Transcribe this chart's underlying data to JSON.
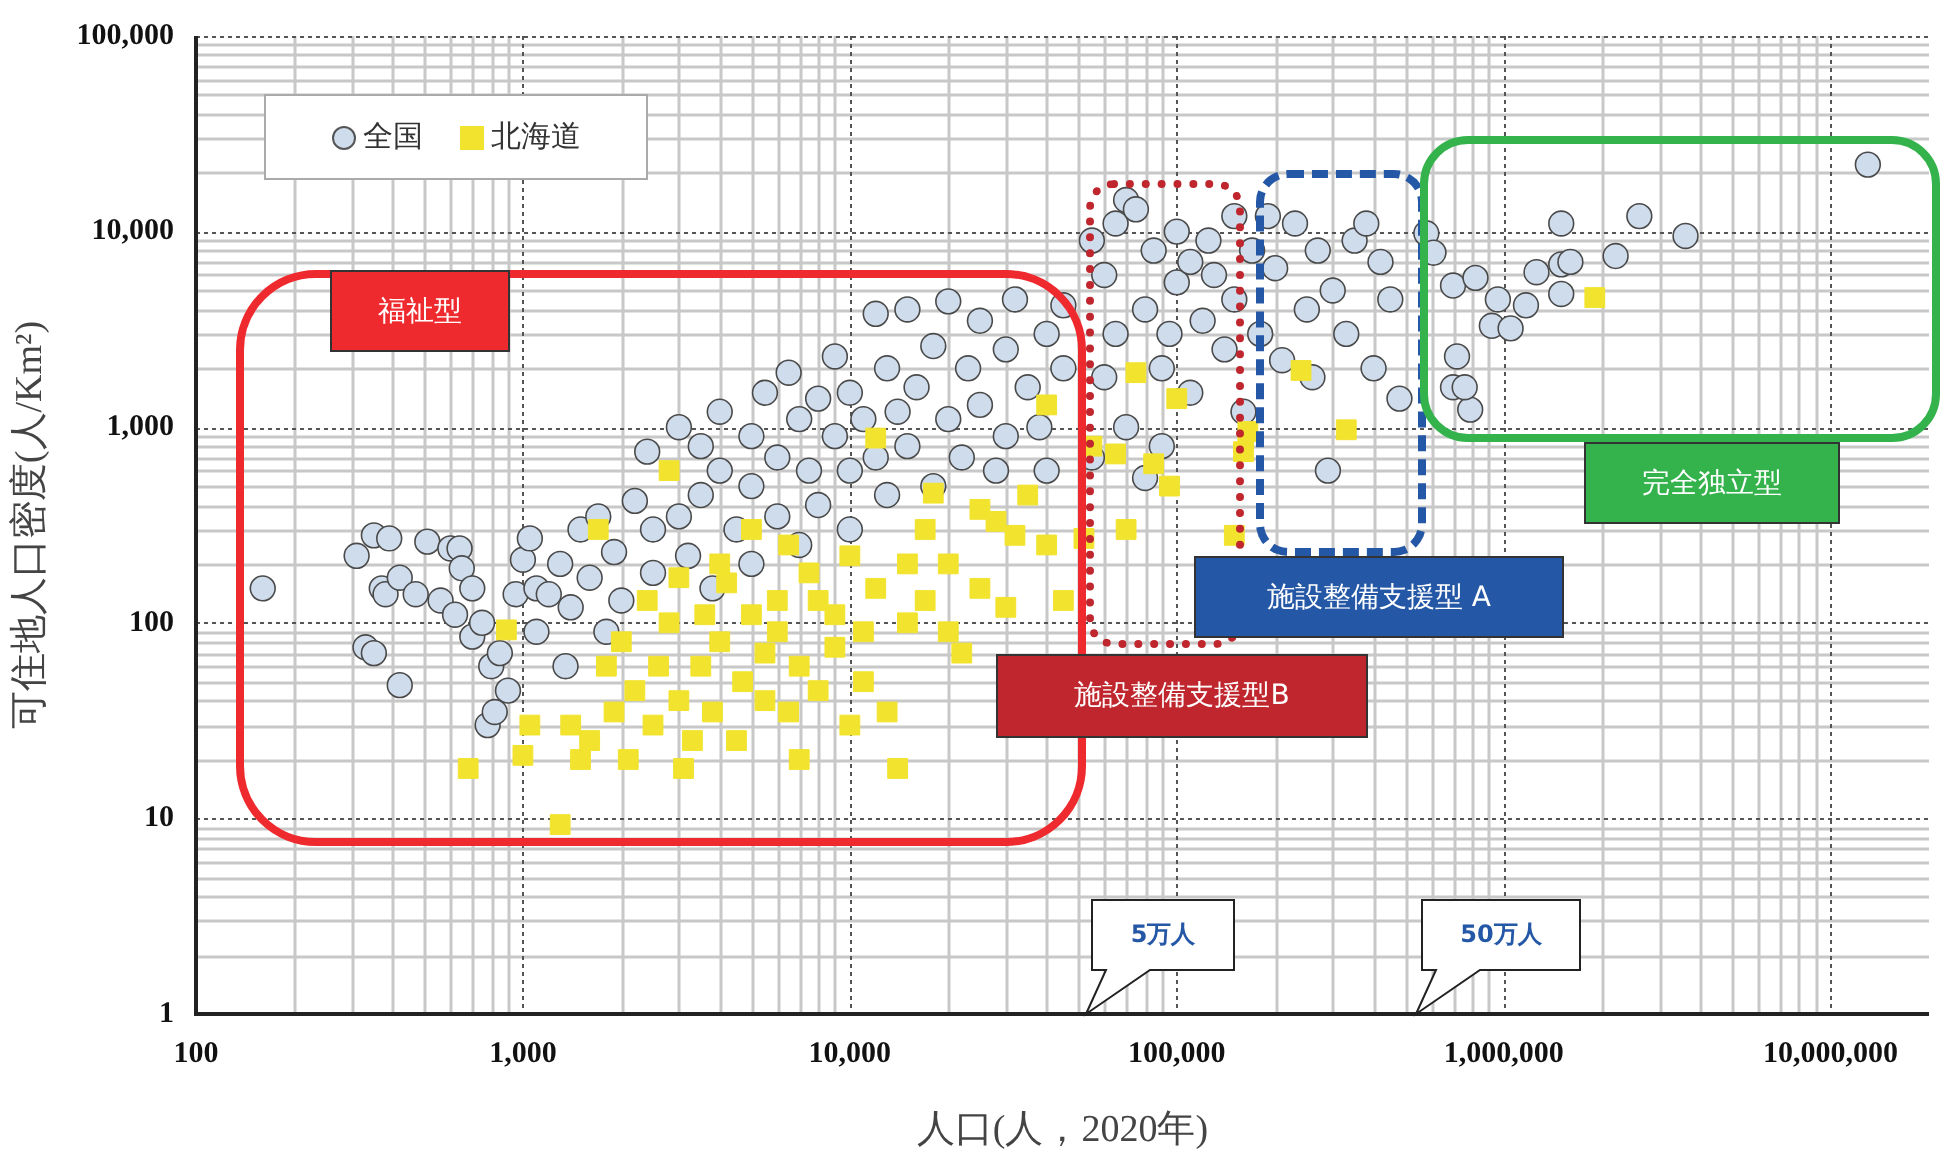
{
  "chart_data": {
    "type": "scatter",
    "xlabel": "人口(人，2020年)",
    "ylabel": "可住地人口密度(人/Km²)",
    "log": "xy",
    "grid": true,
    "legend": "top left",
    "xlim": [
      100,
      20000000
    ],
    "ylim": [
      1,
      100000
    ],
    "xticks": [
      {
        "value": 100,
        "label": "100"
      },
      {
        "value": 1000,
        "label": "1,000"
      },
      {
        "value": 10000,
        "label": "10,000"
      },
      {
        "value": 100000,
        "label": "100,000"
      },
      {
        "value": 1000000,
        "label": "1,000,000"
      },
      {
        "value": 10000000,
        "label": "10,000,000"
      }
    ],
    "yticks": [
      {
        "value": 1,
        "label": "1"
      },
      {
        "value": 10,
        "label": "10"
      },
      {
        "value": 100,
        "label": "100"
      },
      {
        "value": 1000,
        "label": "1,000"
      },
      {
        "value": 10000,
        "label": "10,000"
      },
      {
        "value": 100000,
        "label": "100,000"
      }
    ],
    "annotations": [
      "福祉型",
      "施設整備支援型B",
      "施設整備支援型 A",
      "完全独立型",
      "5万人",
      "50万人"
    ],
    "series": [
      {
        "name": "全国",
        "color": "#cfdcec",
        "marker": "circle",
        "x": [
          160,
          310,
          350,
          390,
          370,
          380,
          420,
          330,
          350,
          420,
          470,
          510,
          560,
          600,
          640,
          650,
          620,
          700,
          700,
          750,
          800,
          850,
          900,
          780,
          820,
          950,
          1000,
          1050,
          1100,
          1100,
          1200,
          1300,
          1350,
          1400,
          1500,
          1600,
          1700,
          1800,
          1900,
          2000,
          2200,
          2500,
          2500,
          2400,
          3000,
          3000,
          3200,
          3500,
          3500,
          3800,
          4000,
          4000,
          4500,
          5000,
          5000,
          5000,
          5500,
          6000,
          6000,
          6500,
          7000,
          7000,
          7500,
          8000,
          8000,
          9000,
          9000,
          10000,
          10000,
          10000,
          11000,
          12000,
          12000,
          13000,
          13000,
          14000,
          15000,
          15000,
          16000,
          18000,
          18000,
          20000,
          20000,
          22000,
          23000,
          25000,
          25000,
          28000,
          30000,
          30000,
          32000,
          35000,
          38000,
          40000,
          40000,
          45000,
          45000,
          55000,
          60000,
          65000,
          70000,
          75000,
          80000,
          85000,
          90000,
          95000,
          100000,
          100000,
          110000,
          110000,
          120000,
          125000,
          130000,
          140000,
          150000,
          150000,
          160000,
          170000,
          180000,
          190000,
          200000,
          210000,
          230000,
          250000,
          260000,
          270000,
          290000,
          300000,
          330000,
          350000,
          380000,
          400000,
          420000,
          450000,
          480000,
          55000,
          60000,
          70000,
          80000,
          65000,
          90000,
          580000,
          610000,
          700000,
          720000,
          790000,
          700000,
          760000,
          820000,
          920000,
          960000,
          1050000,
          1170000,
          1260000,
          1500000,
          1500000,
          1600000,
          1500000,
          2200000,
          2600000,
          3600000,
          13000000
        ],
        "values": [
          150,
          220,
          280,
          270,
          150,
          140,
          170,
          75,
          70,
          48,
          140,
          260,
          130,
          240,
          240,
          190,
          110,
          150,
          85,
          100,
          60,
          70,
          45,
          30,
          35,
          140,
          210,
          270,
          150,
          90,
          140,
          200,
          60,
          120,
          300,
          170,
          350,
          90,
          230,
          130,
          420,
          300,
          180,
          750,
          1000,
          350,
          220,
          800,
          450,
          150,
          600,
          1200,
          300,
          900,
          500,
          200,
          1500,
          700,
          350,
          1900,
          1100,
          250,
          600,
          1400,
          400,
          900,
          2300,
          1500,
          600,
          300,
          1100,
          3800,
          700,
          2000,
          450,
          1200,
          4000,
          800,
          1600,
          2600,
          500,
          4400,
          1100,
          700,
          2000,
          3500,
          1300,
          600,
          2500,
          900,
          4500,
          1600,
          1000,
          3000,
          600,
          2000,
          4200,
          9000,
          6000,
          11000,
          14500,
          13000,
          4000,
          8000,
          2000,
          3000,
          10000,
          5500,
          7000,
          1500,
          3500,
          9000,
          6000,
          2500,
          12000,
          4500,
          1200,
          8000,
          3000,
          12000,
          6500,
          2200,
          11000,
          4000,
          1800,
          8000,
          600,
          5000,
          3000,
          9000,
          11000,
          2000,
          7000,
          4500,
          1400,
          700,
          1800,
          1000,
          550,
          3000,
          800,
          9800,
          7800,
          5300,
          2300,
          1230,
          1600,
          1600,
          5800,
          3300,
          4500,
          3200,
          4200,
          6200,
          11000,
          6800,
          7000,
          4800,
          7500,
          12000,
          9500,
          22000
        ]
      },
      {
        "name": "北海道",
        "color": "#f2e32e",
        "marker": "square",
        "x": [
          680,
          890,
          1000,
          1050,
          1300,
          1400,
          1500,
          1600,
          1700,
          1800,
          1900,
          2000,
          2100,
          2200,
          2400,
          2500,
          2600,
          2800,
          2800,
          3000,
          3000,
          3100,
          3300,
          3500,
          3600,
          3800,
          4000,
          4000,
          4200,
          4500,
          4700,
          5000,
          5000,
          5500,
          5500,
          6000,
          6000,
          6500,
          6500,
          7000,
          7000,
          7500,
          8000,
          8000,
          9000,
          9000,
          10000,
          10000,
          11000,
          11000,
          12000,
          12000,
          13000,
          14000,
          15000,
          15000,
          17000,
          17000,
          18000,
          20000,
          20000,
          22000,
          25000,
          25000,
          28000,
          30000,
          32000,
          35000,
          40000,
          40000,
          45000,
          52000,
          55000,
          65000,
          70000,
          75000,
          85000,
          95000,
          100000,
          150000,
          160000,
          165000,
          240000,
          330000,
          1900000
        ],
        "values": [
          18,
          92,
          21,
          30,
          9.3,
          30,
          20,
          25,
          300,
          60,
          35,
          80,
          20,
          45,
          130,
          30,
          60,
          100,
          600,
          170,
          40,
          18,
          25,
          60,
          110,
          35,
          200,
          80,
          160,
          25,
          50,
          110,
          300,
          40,
          70,
          130,
          90,
          250,
          35,
          60,
          20,
          180,
          45,
          130,
          75,
          110,
          30,
          220,
          50,
          90,
          880,
          150,
          35,
          18,
          200,
          100,
          300,
          130,
          460,
          90,
          200,
          70,
          380,
          150,
          330,
          120,
          280,
          450,
          1300,
          250,
          130,
          270,
          800,
          730,
          300,
          1900,
          650,
          500,
          1400,
          280,
          750,
          950,
          1950,
          970,
          4600
        ]
      }
    ]
  }
}
